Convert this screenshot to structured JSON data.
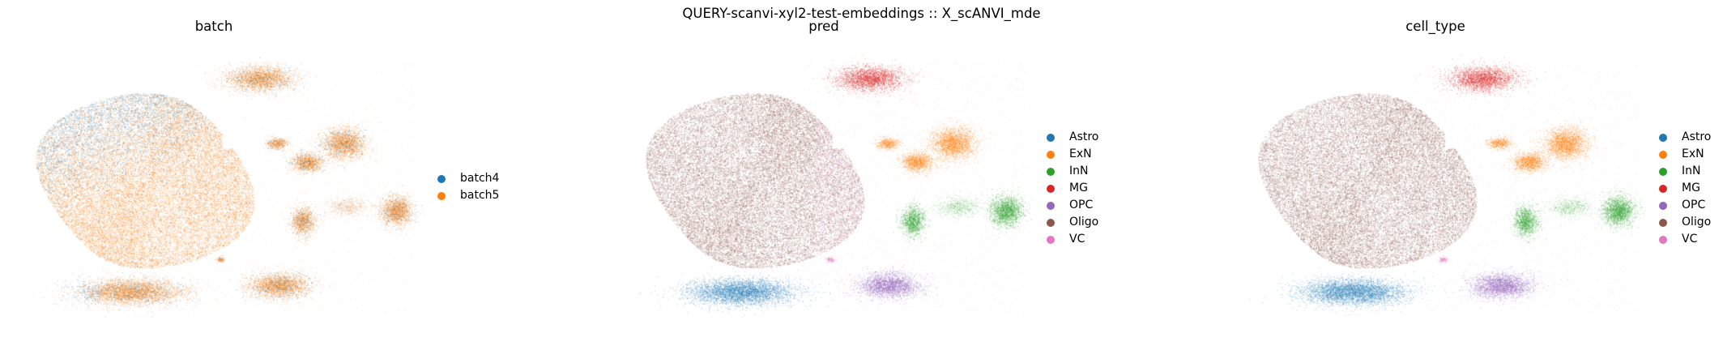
{
  "suptitle": "QUERY-scanvi-xyl2-test-embeddings :: X_scANVI_mde",
  "colors": {
    "batch4": "#1f77b4",
    "batch5": "#ff7f0e",
    "Astro": "#1f77b4",
    "ExN": "#ff7f0e",
    "InN": "#2ca02c",
    "MG": "#d62728",
    "OPC": "#9467bd",
    "Oligo": "#8c564b",
    "VC": "#e377c2"
  },
  "chart_data": [
    {
      "type": "scatter",
      "title": "batch",
      "legend": [
        "batch4",
        "batch5"
      ],
      "legend_placement": "right",
      "grid": false,
      "axes_visible": false
    },
    {
      "type": "scatter",
      "title": "pred",
      "legend": [
        "Astro",
        "ExN",
        "InN",
        "MG",
        "OPC",
        "Oligo",
        "VC"
      ],
      "legend_placement": "right",
      "grid": false,
      "axes_visible": false
    },
    {
      "type": "scatter",
      "title": "cell_type",
      "legend": [
        "Astro",
        "ExN",
        "InN",
        "MG",
        "OPC",
        "Oligo",
        "VC"
      ],
      "legend_placement": "right",
      "grid": false,
      "axes_visible": false
    }
  ]
}
